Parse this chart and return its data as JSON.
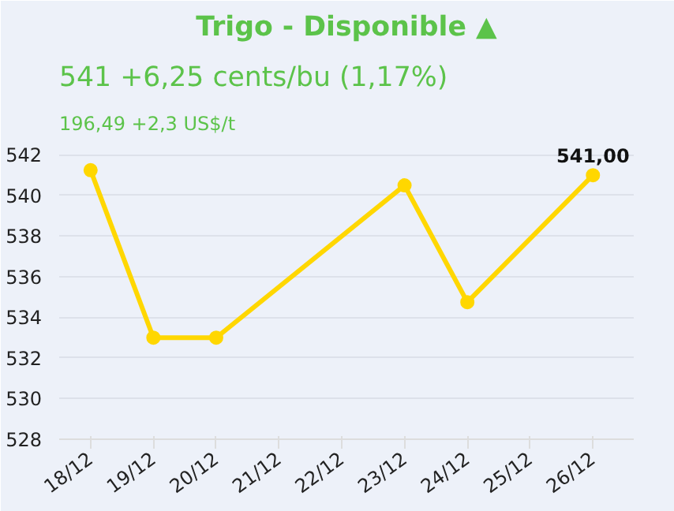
{
  "chart_data": {
    "type": "line",
    "title": "Trigo - Disponible ▲",
    "subtitle": "541 +6,25 cents/bu (1,17%)",
    "annotations": [
      "196,49 +2,3 US$/t"
    ],
    "categories": [
      "18/12",
      "19/12",
      "20/12",
      "21/12",
      "22/12",
      "23/12",
      "24/12",
      "25/12",
      "26/12"
    ],
    "series": [
      {
        "color": "#ffd700",
        "values": [
          541.25,
          533,
          533,
          null,
          null,
          540.5,
          534.75,
          null,
          541
        ],
        "value_labels": [
          null,
          null,
          null,
          null,
          null,
          null,
          null,
          null,
          "541,00"
        ]
      }
    ],
    "ylim": [
      528,
      542.6
    ],
    "yticks": [
      528,
      530,
      532,
      534,
      536,
      538,
      540,
      542
    ],
    "grid": "y",
    "marker": "circle",
    "line_style": "solid"
  }
}
